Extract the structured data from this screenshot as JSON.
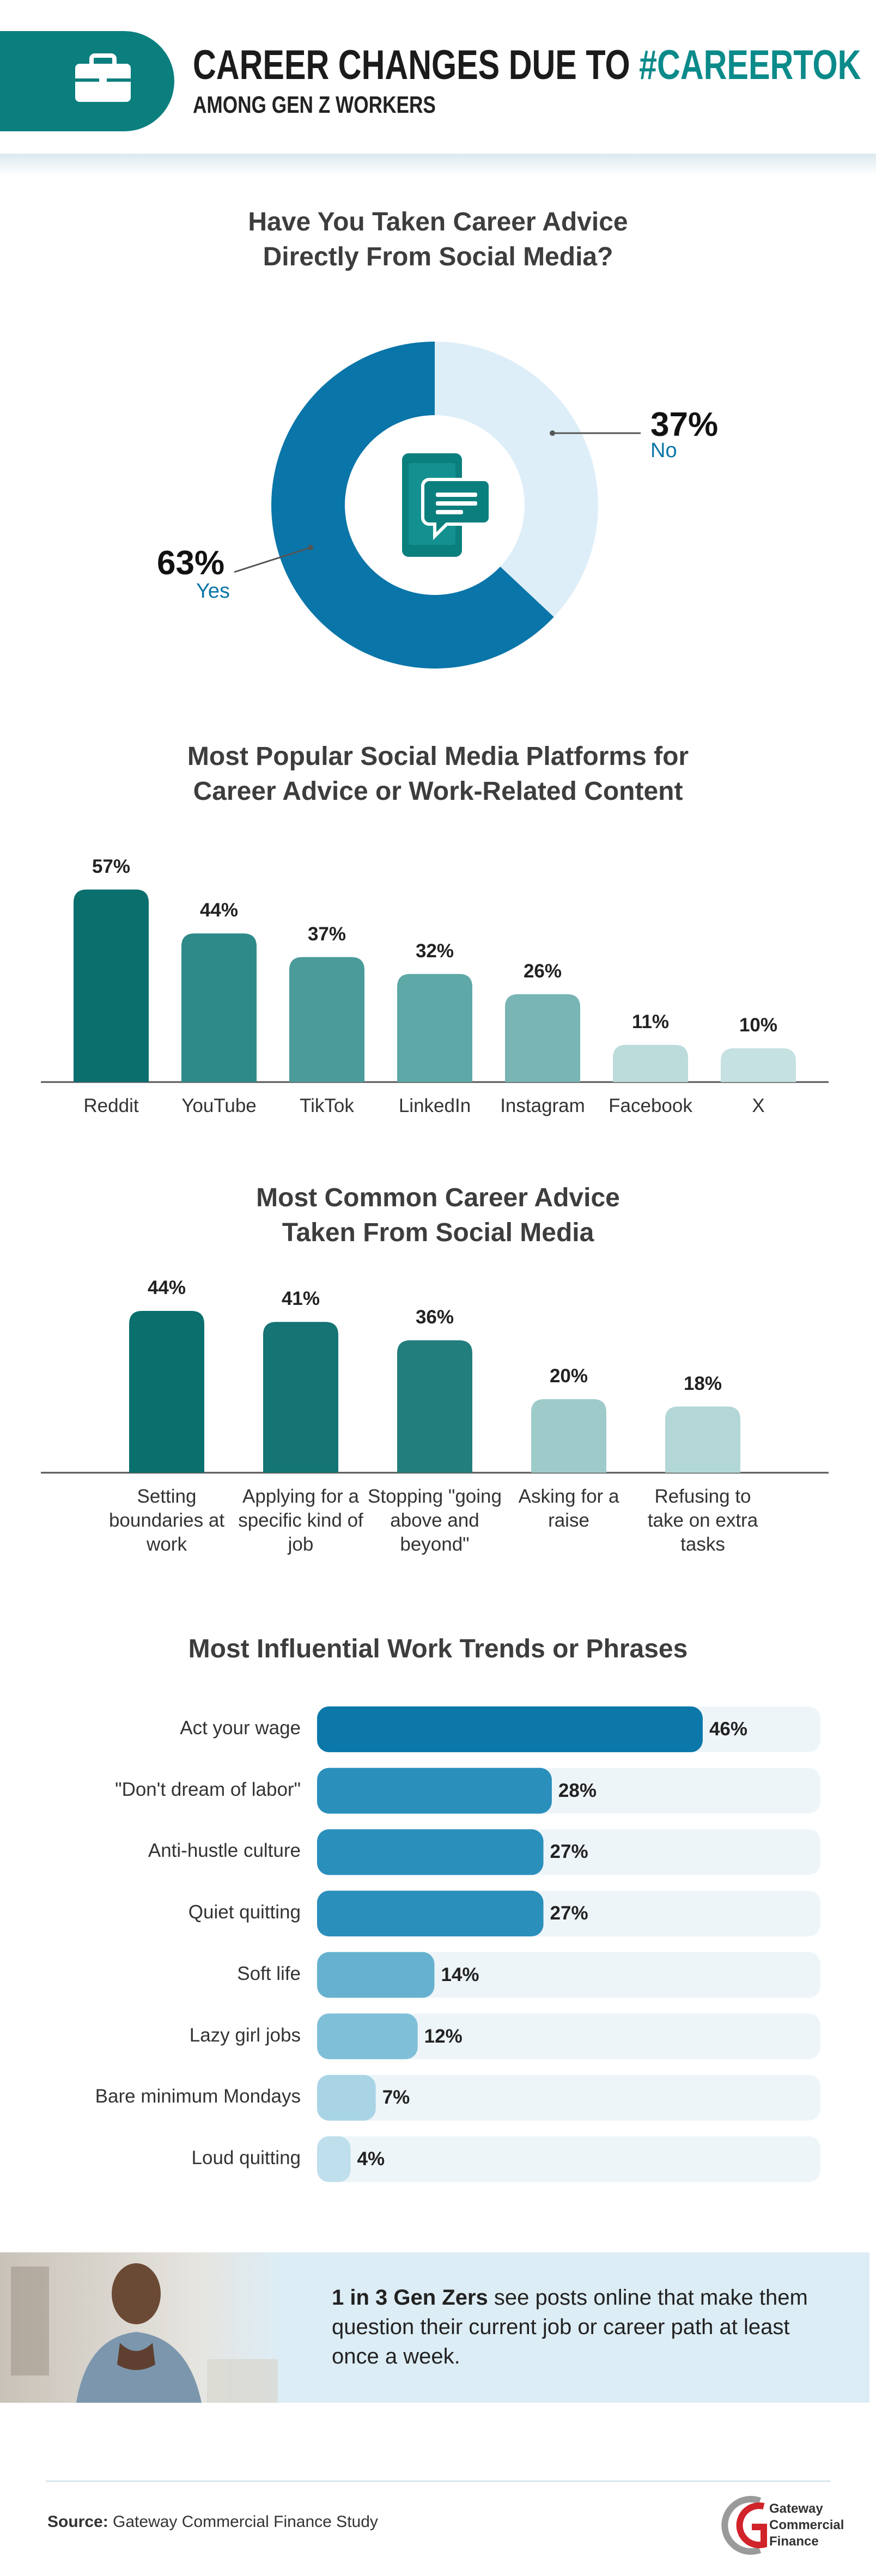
{
  "header": {
    "title_main": "CAREER CHANGES DUE TO ",
    "title_highlight": "#CAREERTOK",
    "subtitle": "AMONG GEN Z WORKERS"
  },
  "chart_data": [
    {
      "type": "donut",
      "title": "Have You Taken Career Advice Directly From Social Media?",
      "categories": [
        "Yes",
        "No"
      ],
      "values": [
        63,
        37
      ],
      "value_labels": [
        "63%",
        "37%"
      ],
      "colors": [
        "#0a75a8",
        "#ddeef8"
      ]
    },
    {
      "type": "bar",
      "title": "Most Popular Social Media Platforms for Career Advice or Work-Related Content",
      "categories": [
        "Reddit",
        "YouTube",
        "TikTok",
        "LinkedIn",
        "Instagram",
        "Facebook",
        "X"
      ],
      "values": [
        57,
        44,
        37,
        32,
        26,
        11,
        10
      ],
      "value_labels": [
        "57%",
        "44%",
        "37%",
        "32%",
        "26%",
        "11%",
        "10%"
      ],
      "colors": [
        "#0b6f6e",
        "#2e8a89",
        "#4a9b9a",
        "#5ea8a7",
        "#78b5b4",
        "#bcdcdc",
        "#c6e1e1"
      ]
    },
    {
      "type": "bar",
      "title": "Most Common Career Advice Taken From Social Media",
      "categories": [
        "Setting boundaries at work",
        "Applying for a specific kind of job",
        "Stopping \"going above and beyond\"",
        "Asking for a raise",
        "Refusing to take on extra tasks"
      ],
      "values": [
        44,
        41,
        36,
        20,
        18
      ],
      "value_labels": [
        "44%",
        "41%",
        "36%",
        "20%",
        "18%"
      ],
      "colors": [
        "#0b6f6e",
        "#157474",
        "#227d7d",
        "#9ecbca",
        "#b3d6d6"
      ]
    },
    {
      "type": "hbar",
      "title": "Most Influential Work Trends or Phrases",
      "categories": [
        "Act your wage",
        "\"Don't dream of labor\"",
        "Anti-hustle culture",
        "Quiet quitting",
        "Soft life",
        "Lazy girl jobs",
        "Bare minimum Mondays",
        "Loud quitting"
      ],
      "values": [
        46,
        28,
        27,
        27,
        14,
        12,
        7,
        4
      ],
      "value_labels": [
        "46%",
        "28%",
        "27%",
        "27%",
        "14%",
        "12%",
        "7%",
        "4%"
      ],
      "colors": [
        "#0c78aa",
        "#2b8fbc",
        "#2b8fbc",
        "#2b8fbc",
        "#66b1cf",
        "#80bfd8",
        "#a9d4e6",
        "#bfdfec"
      ]
    }
  ],
  "callout": {
    "highlight": "1 in 3 Gen Zers",
    "text": " see posts online that make them question their current job or career path at least once a week."
  },
  "source": {
    "label": "Source:",
    "text": " Gateway Commercial Finance Study"
  },
  "logo": {
    "lines": [
      "Gateway",
      "Commercial",
      "Finance"
    ]
  }
}
